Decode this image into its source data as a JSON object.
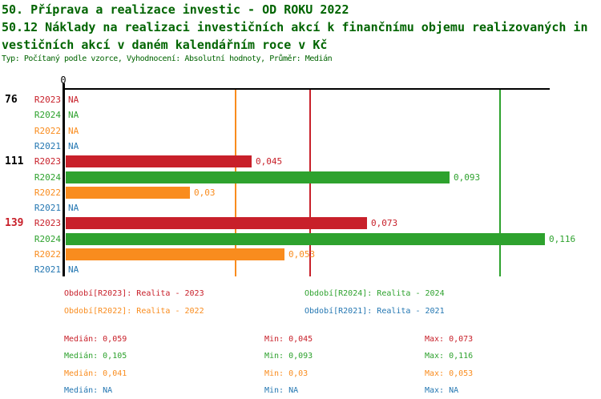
{
  "header": {
    "title_line1": "50. Příprava a realizace investic - OD ROKU 2022",
    "title_line2": "50.12 Náklady na realizaci investičních akcí k finančnímu objemu realizovaných in",
    "title_line3": "vestičních akcí v daném kalendářním roce v Kč",
    "meta_line": "Typ: Počítaný podle vzorce, Vyhodnocení: Absolutní hodnoty, Průměr: Medián"
  },
  "colors": {
    "title": "#006400",
    "axis": "#000000",
    "R2023": "#c8202a",
    "R2024": "#2ea22e",
    "R2022": "#f98c1e",
    "R2021": "#2477b2",
    "group_label_default": "#000000",
    "group_label_highlight": "#c8202a"
  },
  "chart_data": {
    "type": "bar",
    "orientation": "horizontal",
    "value_axis": {
      "tick_label": "0",
      "min": 0,
      "max": 0.117,
      "ticks": [
        0
      ]
    },
    "na_label": "NA",
    "series_order": [
      "R2023",
      "R2024",
      "R2022",
      "R2021"
    ],
    "groups": [
      {
        "label": "76",
        "highlight": false,
        "values": {
          "R2023": null,
          "R2024": null,
          "R2022": null,
          "R2021": null
        },
        "value_labels": {
          "R2023": "NA",
          "R2024": "NA",
          "R2022": "NA",
          "R2021": "NA"
        }
      },
      {
        "label": "111",
        "highlight": false,
        "values": {
          "R2023": 0.045,
          "R2024": 0.093,
          "R2022": 0.03,
          "R2021": null
        },
        "value_labels": {
          "R2023": "0,045",
          "R2024": "0,093",
          "R2022": "0,03",
          "R2021": "NA"
        }
      },
      {
        "label": "139",
        "highlight": true,
        "values": {
          "R2023": 0.073,
          "R2024": 0.116,
          "R2022": 0.053,
          "R2021": null
        },
        "value_labels": {
          "R2023": "0,073",
          "R2024": "0,116",
          "R2022": "0,053",
          "R2021": "NA"
        }
      }
    ],
    "median_lines": [
      {
        "series": "R2022",
        "value": 0.041
      },
      {
        "series": "R2023",
        "value": 0.059
      },
      {
        "series": "R2024",
        "value": 0.105
      }
    ],
    "legend": [
      {
        "series": "R2023",
        "label": "Období[R2023]: Realita - 2023",
        "column": 0,
        "row": 0
      },
      {
        "series": "R2024",
        "label": "Období[R2024]: Realita - 2024",
        "column": 1,
        "row": 0
      },
      {
        "series": "R2022",
        "label": "Období[R2022]: Realita - 2022",
        "column": 0,
        "row": 1
      },
      {
        "series": "R2021",
        "label": "Období[R2021]: Realita - 2021",
        "column": 1,
        "row": 1
      }
    ],
    "stat_labels": {
      "median": "Medián",
      "min": "Min",
      "max": "Max"
    },
    "stats": [
      {
        "series": "R2023",
        "median": "0,059",
        "min": "0,045",
        "max": "0,073"
      },
      {
        "series": "R2024",
        "median": "0,105",
        "min": "0,093",
        "max": "0,116"
      },
      {
        "series": "R2022",
        "median": "0,041",
        "min": "0,03",
        "max": "0,053"
      },
      {
        "series": "R2021",
        "median": "NA",
        "min": "NA",
        "max": "NA"
      }
    ]
  }
}
